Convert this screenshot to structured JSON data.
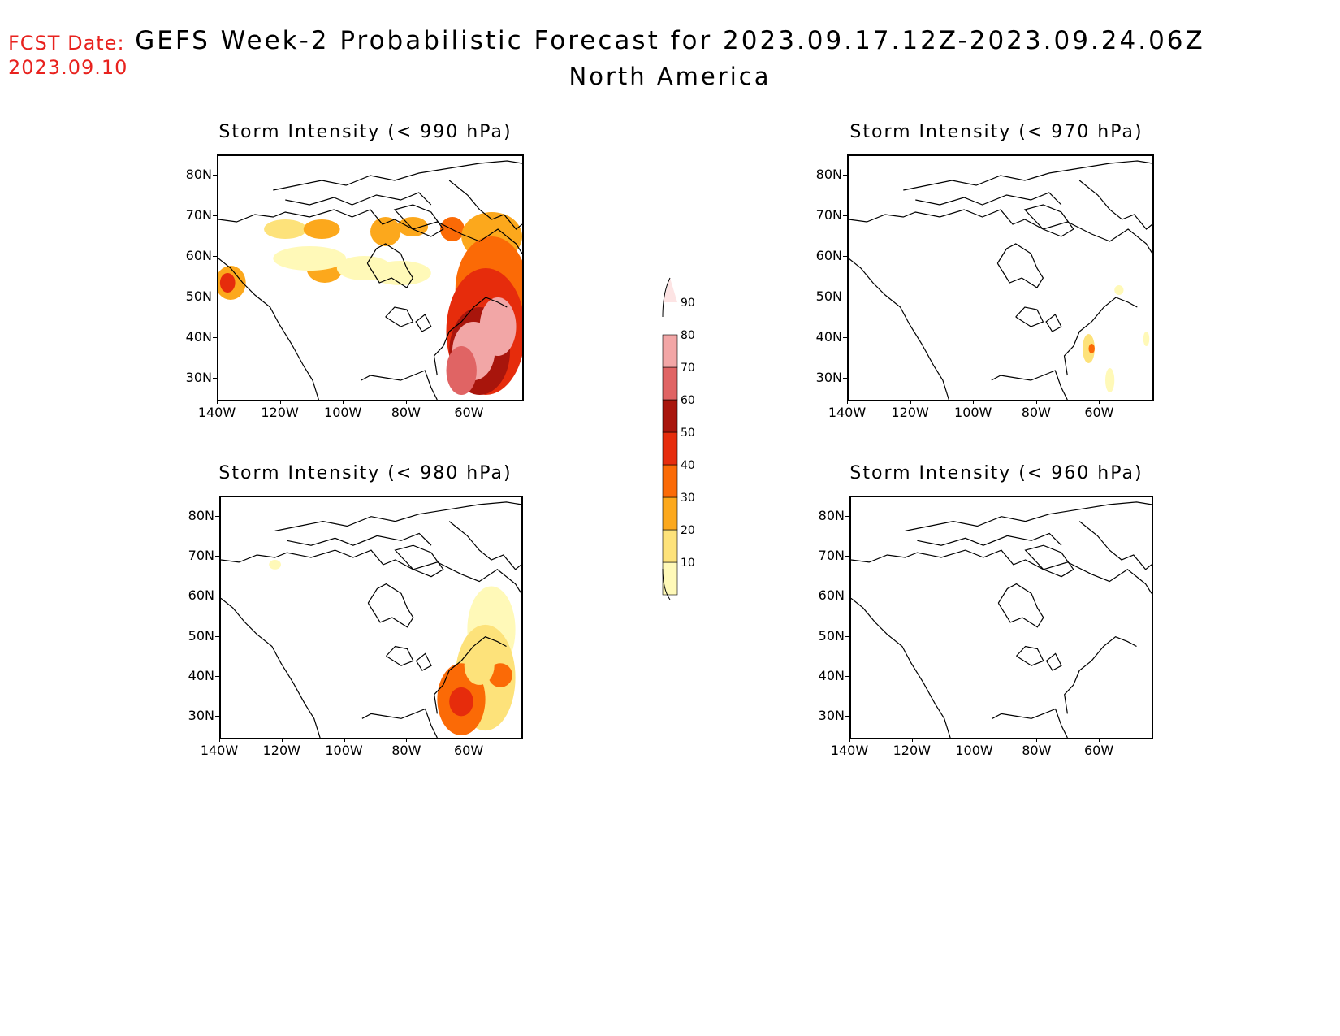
{
  "header": {
    "fcst_label": "FCST Date:",
    "fcst_date": "2023.09.10",
    "title": "GEFS Week-2 Probabilistic Forecast for 2023.09.17.12Z-2023.09.24.06Z",
    "subtitle": "North America"
  },
  "colors": {
    "fcst_text": "#e8221e",
    "scale": [
      "#fff9b8",
      "#fde27a",
      "#fca81c",
      "#fb6a06",
      "#e62c0c",
      "#a8150c",
      "#e06464",
      "#f2a6a6",
      "#fde4e4"
    ]
  },
  "colorbar": {
    "levels": [
      "10",
      "20",
      "30",
      "40",
      "50",
      "60",
      "70",
      "80",
      "90"
    ]
  },
  "axes": {
    "lat_labels": [
      "80N",
      "70N",
      "60N",
      "50N",
      "40N",
      "30N"
    ],
    "lon_labels": [
      "140W",
      "120W",
      "100W",
      "80W",
      "60W"
    ]
  },
  "panels": [
    {
      "id": "p990",
      "title": "Storm Intensity (< 990 hPa)"
    },
    {
      "id": "p970",
      "title": "Storm Intensity (< 970 hPa)"
    },
    {
      "id": "p980",
      "title": "Storm Intensity (< 980 hPa)"
    },
    {
      "id": "p960",
      "title": "Storm Intensity (< 960 hPa)"
    }
  ]
}
